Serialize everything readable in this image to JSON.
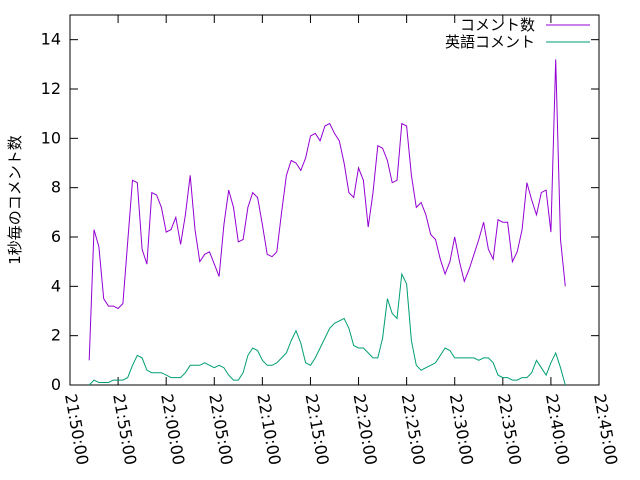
{
  "chart_data": {
    "type": "line",
    "title": "",
    "xlabel": "",
    "ylabel": "1秒毎のコメント数",
    "xlim": [
      "21:50:00",
      "22:45:00"
    ],
    "ylim": [
      0,
      15
    ],
    "xticks": [
      "21:50:00",
      "21:55:00",
      "22:00:00",
      "22:05:00",
      "22:10:00",
      "22:15:00",
      "22:20:00",
      "22:25:00",
      "22:30:00",
      "22:35:00",
      "22:40:00",
      "22:45:00"
    ],
    "yticks": [
      "0",
      "2",
      "4",
      "6",
      "8",
      "10",
      "12",
      "14"
    ],
    "grid": false,
    "legend": "top-right",
    "series": [
      {
        "name": "コメント数",
        "color": "#9400d3",
        "points": [
          [
            "21:52:00",
            1.0
          ],
          [
            "21:52:30",
            6.3
          ],
          [
            "21:53:00",
            5.6
          ],
          [
            "21:53:30",
            3.5
          ],
          [
            "21:54:00",
            3.2
          ],
          [
            "21:54:30",
            3.2
          ],
          [
            "21:55:00",
            3.1
          ],
          [
            "21:55:30",
            3.3
          ],
          [
            "21:56:00",
            5.8
          ],
          [
            "21:56:30",
            8.3
          ],
          [
            "21:57:00",
            8.2
          ],
          [
            "21:57:30",
            5.5
          ],
          [
            "21:58:00",
            4.9
          ],
          [
            "21:58:30",
            7.8
          ],
          [
            "21:59:00",
            7.7
          ],
          [
            "21:59:30",
            7.2
          ],
          [
            "22:00:00",
            6.2
          ],
          [
            "22:00:30",
            6.3
          ],
          [
            "22:01:00",
            6.8
          ],
          [
            "22:01:30",
            5.7
          ],
          [
            "22:02:00",
            6.9
          ],
          [
            "22:02:30",
            8.5
          ],
          [
            "22:03:00",
            6.3
          ],
          [
            "22:03:30",
            5.0
          ],
          [
            "22:04:00",
            5.3
          ],
          [
            "22:04:30",
            5.4
          ],
          [
            "22:05:00",
            4.9
          ],
          [
            "22:05:30",
            4.4
          ],
          [
            "22:06:00",
            6.5
          ],
          [
            "22:06:30",
            7.9
          ],
          [
            "22:07:00",
            7.2
          ],
          [
            "22:07:30",
            5.8
          ],
          [
            "22:08:00",
            5.9
          ],
          [
            "22:08:30",
            7.2
          ],
          [
            "22:09:00",
            7.8
          ],
          [
            "22:09:30",
            7.6
          ],
          [
            "22:10:00",
            6.5
          ],
          [
            "22:10:30",
            5.3
          ],
          [
            "22:11:00",
            5.2
          ],
          [
            "22:11:30",
            5.4
          ],
          [
            "22:12:00",
            7.0
          ],
          [
            "22:12:30",
            8.5
          ],
          [
            "22:13:00",
            9.1
          ],
          [
            "22:13:30",
            9.0
          ],
          [
            "22:14:00",
            8.7
          ],
          [
            "22:14:30",
            9.2
          ],
          [
            "22:15:00",
            10.1
          ],
          [
            "22:15:30",
            10.2
          ],
          [
            "22:16:00",
            9.9
          ],
          [
            "22:16:30",
            10.5
          ],
          [
            "22:17:00",
            10.6
          ],
          [
            "22:17:30",
            10.2
          ],
          [
            "22:18:00",
            9.9
          ],
          [
            "22:18:30",
            9.0
          ],
          [
            "22:19:00",
            7.8
          ],
          [
            "22:19:30",
            7.6
          ],
          [
            "22:20:00",
            8.8
          ],
          [
            "22:20:30",
            8.3
          ],
          [
            "22:21:00",
            6.4
          ],
          [
            "22:21:30",
            7.8
          ],
          [
            "22:22:00",
            9.7
          ],
          [
            "22:22:30",
            9.6
          ],
          [
            "22:23:00",
            9.1
          ],
          [
            "22:23:30",
            8.2
          ],
          [
            "22:24:00",
            8.3
          ],
          [
            "22:24:30",
            10.6
          ],
          [
            "22:25:00",
            10.5
          ],
          [
            "22:25:30",
            8.5
          ],
          [
            "22:26:00",
            7.2
          ],
          [
            "22:26:30",
            7.4
          ],
          [
            "22:27:00",
            6.9
          ],
          [
            "22:27:30",
            6.1
          ],
          [
            "22:28:00",
            5.9
          ],
          [
            "22:28:30",
            5.1
          ],
          [
            "22:29:00",
            4.5
          ],
          [
            "22:29:30",
            5.0
          ],
          [
            "22:30:00",
            6.0
          ],
          [
            "22:30:30",
            5.0
          ],
          [
            "22:31:00",
            4.2
          ],
          [
            "22:31:30",
            4.7
          ],
          [
            "22:32:00",
            5.3
          ],
          [
            "22:32:30",
            5.9
          ],
          [
            "22:33:00",
            6.6
          ],
          [
            "22:33:30",
            5.5
          ],
          [
            "22:34:00",
            5.1
          ],
          [
            "22:34:30",
            6.7
          ],
          [
            "22:35:00",
            6.6
          ],
          [
            "22:35:30",
            6.6
          ],
          [
            "22:36:00",
            5.0
          ],
          [
            "22:36:30",
            5.4
          ],
          [
            "22:37:00",
            6.3
          ],
          [
            "22:37:30",
            8.2
          ],
          [
            "22:38:00",
            7.5
          ],
          [
            "22:38:30",
            6.9
          ],
          [
            "22:39:00",
            7.8
          ],
          [
            "22:39:30",
            7.9
          ],
          [
            "22:40:00",
            6.2
          ],
          [
            "22:40:30",
            13.2
          ],
          [
            "22:41:00",
            5.9
          ],
          [
            "22:41:30",
            4.0
          ]
        ]
      },
      {
        "name": "英語コメント",
        "color": "#009e73",
        "points": [
          [
            "21:52:00",
            0.0
          ],
          [
            "21:52:30",
            0.2
          ],
          [
            "21:53:00",
            0.1
          ],
          [
            "21:53:30",
            0.1
          ],
          [
            "21:54:00",
            0.1
          ],
          [
            "21:54:30",
            0.2
          ],
          [
            "21:55:00",
            0.2
          ],
          [
            "21:55:30",
            0.2
          ],
          [
            "21:56:00",
            0.3
          ],
          [
            "21:56:30",
            0.8
          ],
          [
            "21:57:00",
            1.2
          ],
          [
            "21:57:30",
            1.1
          ],
          [
            "21:58:00",
            0.6
          ],
          [
            "21:58:30",
            0.5
          ],
          [
            "21:59:00",
            0.5
          ],
          [
            "21:59:30",
            0.5
          ],
          [
            "22:00:00",
            0.4
          ],
          [
            "22:00:30",
            0.3
          ],
          [
            "22:01:00",
            0.3
          ],
          [
            "22:01:30",
            0.3
          ],
          [
            "22:02:00",
            0.5
          ],
          [
            "22:02:30",
            0.8
          ],
          [
            "22:03:00",
            0.8
          ],
          [
            "22:03:30",
            0.8
          ],
          [
            "22:04:00",
            0.9
          ],
          [
            "22:04:30",
            0.8
          ],
          [
            "22:05:00",
            0.7
          ],
          [
            "22:05:30",
            0.8
          ],
          [
            "22:06:00",
            0.7
          ],
          [
            "22:06:30",
            0.4
          ],
          [
            "22:07:00",
            0.2
          ],
          [
            "22:07:30",
            0.2
          ],
          [
            "22:08:00",
            0.5
          ],
          [
            "22:08:30",
            1.2
          ],
          [
            "22:09:00",
            1.5
          ],
          [
            "22:09:30",
            1.4
          ],
          [
            "22:10:00",
            1.0
          ],
          [
            "22:10:30",
            0.8
          ],
          [
            "22:11:00",
            0.8
          ],
          [
            "22:11:30",
            0.9
          ],
          [
            "22:12:00",
            1.1
          ],
          [
            "22:12:30",
            1.3
          ],
          [
            "22:13:00",
            1.8
          ],
          [
            "22:13:30",
            2.2
          ],
          [
            "22:14:00",
            1.7
          ],
          [
            "22:14:30",
            0.9
          ],
          [
            "22:15:00",
            0.8
          ],
          [
            "22:15:30",
            1.1
          ],
          [
            "22:16:00",
            1.5
          ],
          [
            "22:16:30",
            1.9
          ],
          [
            "22:17:00",
            2.3
          ],
          [
            "22:17:30",
            2.5
          ],
          [
            "22:18:00",
            2.6
          ],
          [
            "22:18:30",
            2.7
          ],
          [
            "22:19:00",
            2.3
          ],
          [
            "22:19:30",
            1.6
          ],
          [
            "22:20:00",
            1.5
          ],
          [
            "22:20:30",
            1.5
          ],
          [
            "22:21:00",
            1.3
          ],
          [
            "22:21:30",
            1.1
          ],
          [
            "22:22:00",
            1.1
          ],
          [
            "22:22:30",
            1.9
          ],
          [
            "22:23:00",
            3.5
          ],
          [
            "22:23:30",
            2.9
          ],
          [
            "22:24:00",
            2.7
          ],
          [
            "22:24:30",
            4.5
          ],
          [
            "22:25:00",
            4.1
          ],
          [
            "22:25:30",
            1.8
          ],
          [
            "22:26:00",
            0.8
          ],
          [
            "22:26:30",
            0.6
          ],
          [
            "22:27:00",
            0.7
          ],
          [
            "22:27:30",
            0.8
          ],
          [
            "22:28:00",
            0.9
          ],
          [
            "22:28:30",
            1.2
          ],
          [
            "22:29:00",
            1.5
          ],
          [
            "22:29:30",
            1.4
          ],
          [
            "22:30:00",
            1.1
          ],
          [
            "22:30:30",
            1.1
          ],
          [
            "22:31:00",
            1.1
          ],
          [
            "22:31:30",
            1.1
          ],
          [
            "22:32:00",
            1.1
          ],
          [
            "22:32:30",
            1.0
          ],
          [
            "22:33:00",
            1.1
          ],
          [
            "22:33:30",
            1.1
          ],
          [
            "22:34:00",
            0.9
          ],
          [
            "22:34:30",
            0.4
          ],
          [
            "22:35:00",
            0.3
          ],
          [
            "22:35:30",
            0.3
          ],
          [
            "22:36:00",
            0.2
          ],
          [
            "22:36:30",
            0.2
          ],
          [
            "22:37:00",
            0.3
          ],
          [
            "22:37:30",
            0.3
          ],
          [
            "22:38:00",
            0.5
          ],
          [
            "22:38:30",
            1.0
          ],
          [
            "22:39:00",
            0.7
          ],
          [
            "22:39:30",
            0.4
          ],
          [
            "22:40:00",
            0.9
          ],
          [
            "22:40:30",
            1.3
          ],
          [
            "22:41:00",
            0.7
          ],
          [
            "22:41:30",
            0.0
          ]
        ]
      }
    ]
  }
}
